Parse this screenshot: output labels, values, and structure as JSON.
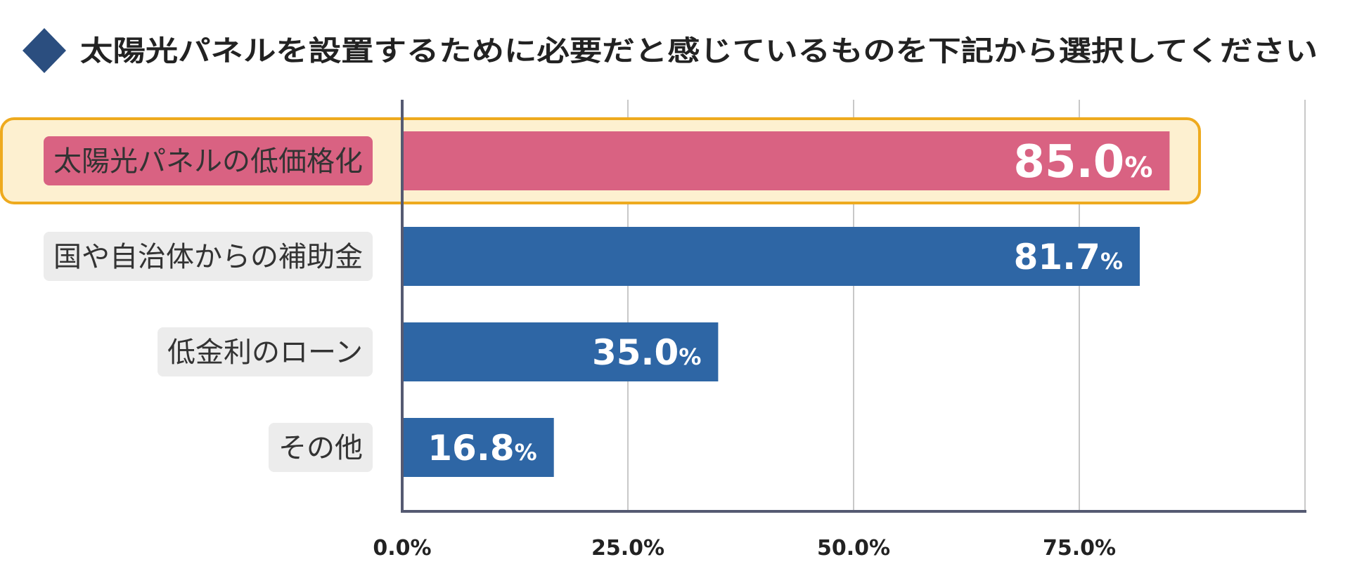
{
  "chart_data": {
    "type": "bar",
    "orientation": "horizontal",
    "title": "太陽光パネルを設置するために必要だと感じているものを下記から選択してください",
    "categories": [
      "太陽光パネルの低価格化",
      "国や自治体からの補助金",
      "低金利のローン",
      "その他"
    ],
    "values": [
      85.0,
      81.7,
      35.0,
      16.8
    ],
    "value_labels": [
      "85.0",
      "81.7",
      "35.0",
      "16.8"
    ],
    "value_suffix": "%",
    "highlight_index": 0,
    "xlim": [
      0,
      100
    ],
    "x_ticks": [
      0,
      25,
      50,
      75
    ],
    "x_tick_labels": [
      "0.0%",
      "25.0%",
      "50.0%",
      "75.0%"
    ],
    "grid": true,
    "xlabel": "",
    "ylabel": ""
  },
  "colors": {
    "bar": "#2e66a5",
    "highlight_bar": "#d96282",
    "highlight_bg": "#fdf0d0",
    "highlight_border": "#eeaa1e",
    "label_bg": "#ececec",
    "axis": "#555a72",
    "grid": "#c8c8c8",
    "title_marker": "#2b4e7f"
  },
  "icons": {
    "title_marker": "diamond-icon"
  }
}
